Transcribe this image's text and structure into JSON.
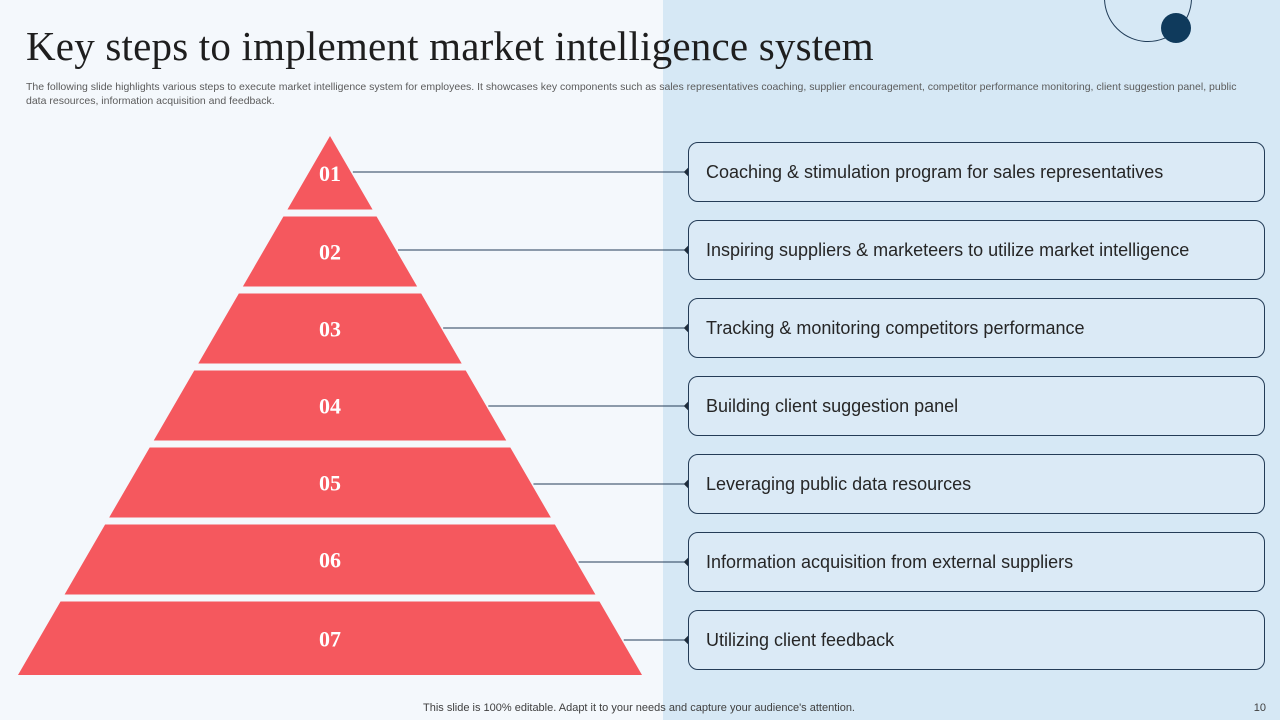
{
  "slide": {
    "title": "Key steps to implement market intelligence system",
    "subtitle": "The following slide highlights various steps to execute market intelligence system for employees. It showcases key components such as sales representatives coaching, supplier encouragement, competitor performance monitoring, client suggestion panel, public data resources, information acquisition and feedback.",
    "footer": "This slide is 100% editable. Adapt it to your needs and capture your audience's attention.",
    "page_number": "10"
  },
  "colors": {
    "pyramid_fill": "#f5585e",
    "panel_background": "#d6e8f5",
    "box_border": "#243c57",
    "accent_dark": "#0f3a5c"
  },
  "steps": [
    {
      "number": "01",
      "text": "Coaching & stimulation program for sales representatives"
    },
    {
      "number": "02",
      "text": "Inspiring suppliers & marketeers to utilize market intelligence"
    },
    {
      "number": "03",
      "text": "Tracking & monitoring competitors performance"
    },
    {
      "number": "04",
      "text": "Building client suggestion panel"
    },
    {
      "number": "05",
      "text": "Leveraging public data resources"
    },
    {
      "number": "06",
      "text": "Information acquisition from external suppliers"
    },
    {
      "number": "07",
      "text": "Utilizing client feedback"
    }
  ]
}
